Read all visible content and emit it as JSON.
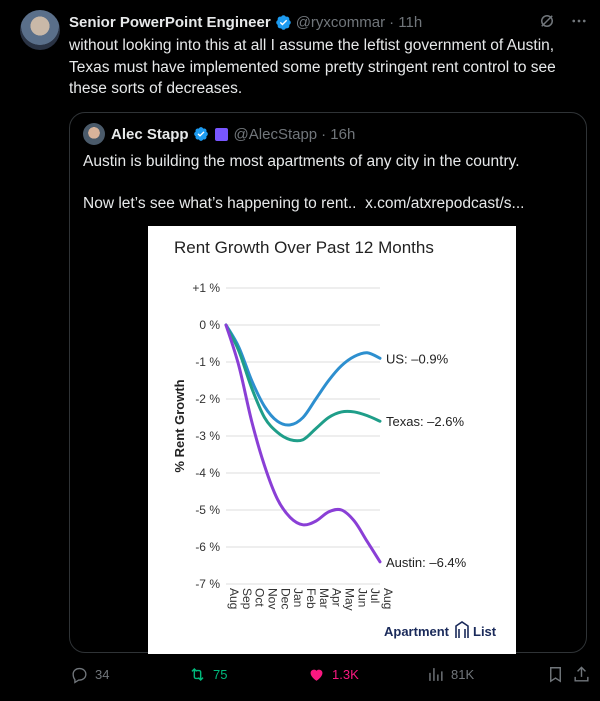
{
  "tweet": {
    "author_name": "Senior PowerPoint Engineer",
    "handle": "@ryxcommar",
    "time": "· 11h",
    "text": "without looking into this at all I assume the leftist government of Austin, Texas must have implemented some pretty stringent rent control to see these sorts of decreases."
  },
  "quote": {
    "author_name": "Alec Stapp",
    "handle": "@AlecStapp",
    "time": "· 16h",
    "line1": "Austin is building the most apartments of any city in the country.",
    "line2": "Now let’s see what’s happening to rent..",
    "link": "x.com/atxrepodcast/s..."
  },
  "actions": {
    "replies": "34",
    "reposts": "75",
    "likes": "1.3K",
    "views": "81K"
  },
  "colors": {
    "accent_verified": "#1d9bf0",
    "repost": "#00ba7c",
    "like": "#f91880",
    "austin": "#8a3fd6",
    "texas": "#1f9e89",
    "us": "#2d8fcf"
  },
  "chart_data": {
    "type": "line",
    "title": "Rent Growth Over Past 12 Months",
    "ylabel": "% Rent Growth",
    "xlabel": "",
    "brand": "Apartment List",
    "ylim": [
      -7,
      1
    ],
    "y_ticks": [
      "+1 %",
      "0 %",
      "-1 %",
      "-2 %",
      "-3 %",
      "-4 %",
      "-5 %",
      "-6 %",
      "-7 %"
    ],
    "y_tick_values": [
      1,
      0,
      -1,
      -2,
      -3,
      -4,
      -5,
      -6,
      -7
    ],
    "categories": [
      "Aug",
      "Sep",
      "Oct",
      "Nov",
      "Dec",
      "Jan",
      "Feb",
      "Mar",
      "Apr",
      "May",
      "Jun",
      "Jul",
      "Aug"
    ],
    "grid": true,
    "series": [
      {
        "name": "US",
        "end_label": "US: –0.9%",
        "color": "#2d8fcf",
        "values": [
          0,
          -0.6,
          -1.5,
          -2.2,
          -2.6,
          -2.7,
          -2.5,
          -2.0,
          -1.5,
          -1.1,
          -0.85,
          -0.75,
          -0.9
        ]
      },
      {
        "name": "Texas",
        "end_label": "Texas: –2.6%",
        "color": "#1f9e89",
        "values": [
          0,
          -0.7,
          -1.7,
          -2.5,
          -2.9,
          -3.1,
          -3.1,
          -2.8,
          -2.5,
          -2.35,
          -2.35,
          -2.45,
          -2.6
        ]
      },
      {
        "name": "Austin",
        "end_label": "Austin: –6.4%",
        "color": "#8a3fd6",
        "values": [
          0,
          -1.1,
          -2.6,
          -3.8,
          -4.7,
          -5.2,
          -5.4,
          -5.3,
          -5.05,
          -5.0,
          -5.3,
          -5.85,
          -6.4
        ]
      }
    ]
  }
}
